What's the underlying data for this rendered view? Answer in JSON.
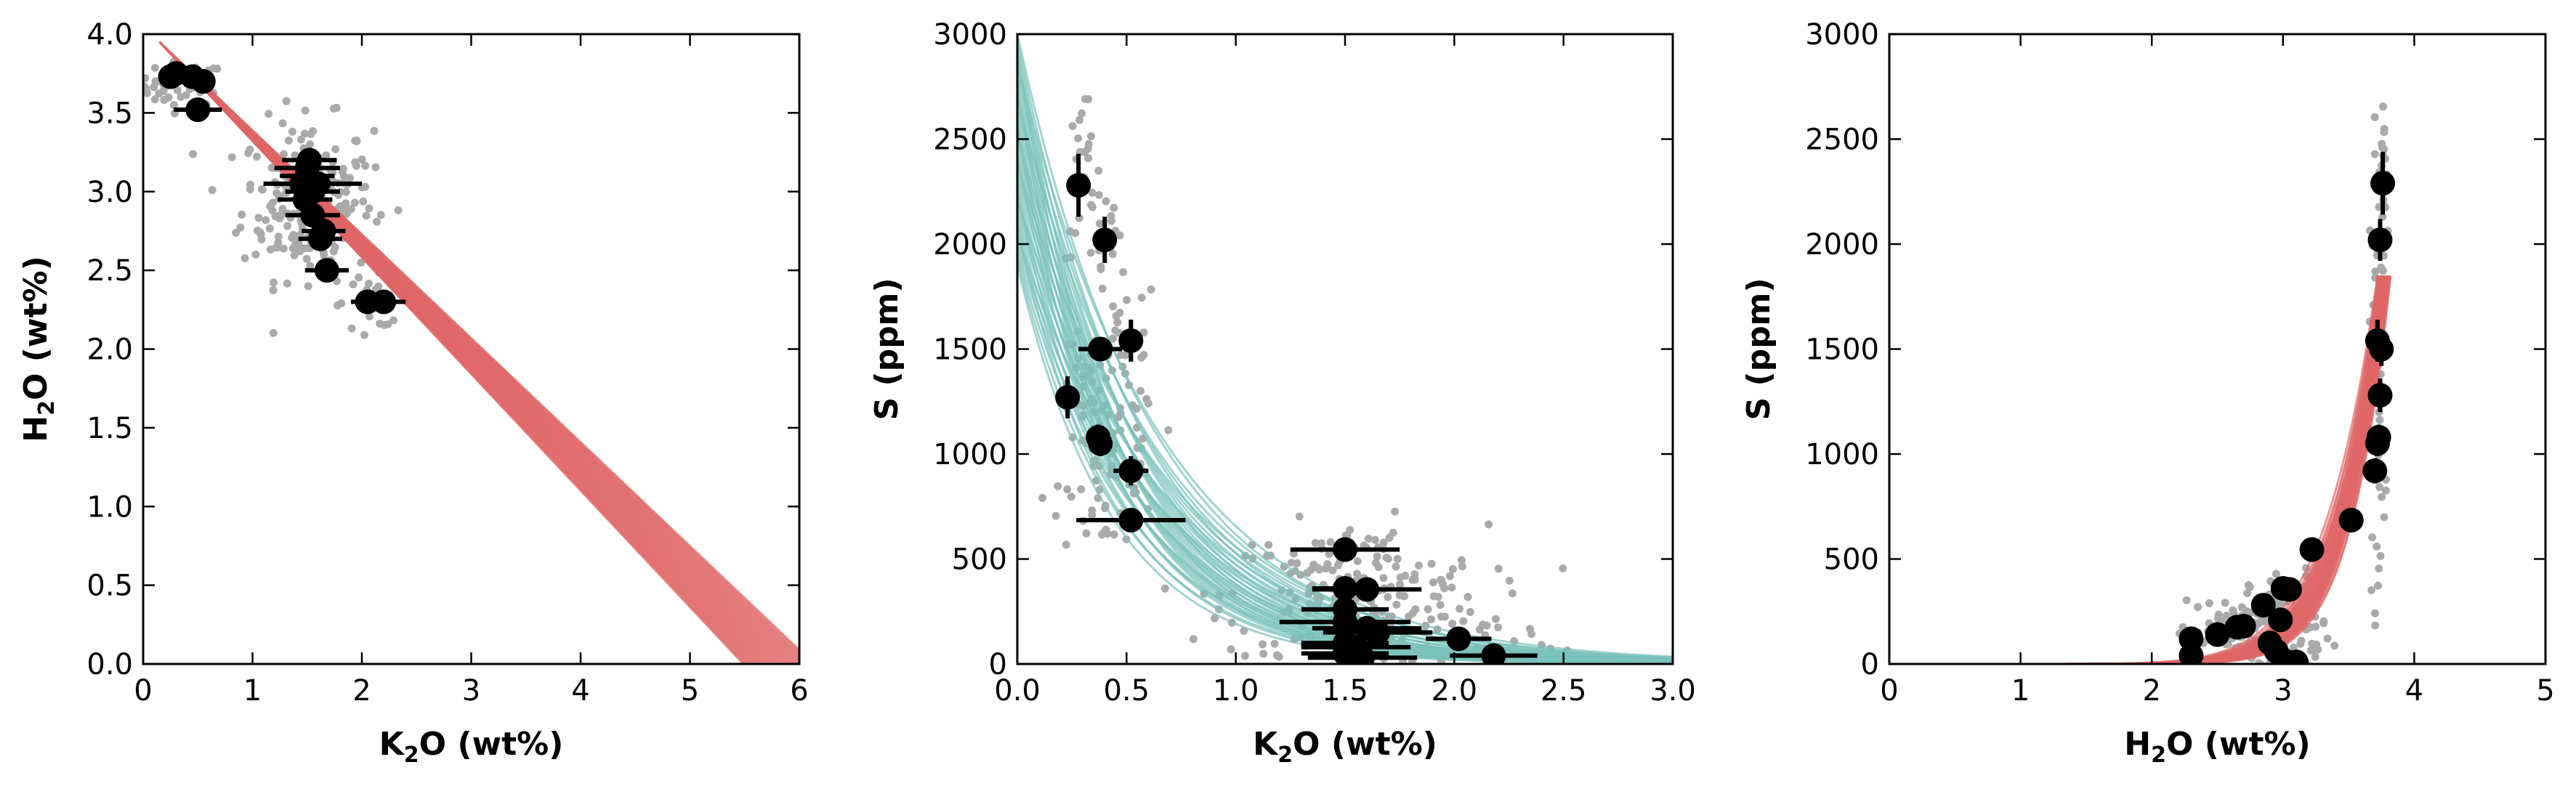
{
  "colors": {
    "red_model": "#e06666",
    "teal_model": "#79c2bb",
    "scatter": "#aaaaaa",
    "points": "#000000"
  },
  "chart_data": [
    {
      "type": "scatter",
      "xlabel": {
        "main": "K",
        "sub": "2",
        "rest": "O (wt%)"
      },
      "ylabel": {
        "main": "H",
        "sub": "2",
        "rest": "O (wt%)"
      },
      "xlim": [
        0,
        6
      ],
      "ylim": [
        0,
        4
      ],
      "xticks": [
        "0",
        "1",
        "2",
        "3",
        "4",
        "5",
        "6"
      ],
      "yticks": [
        "0.0",
        "0.5",
        "1.0",
        "1.5",
        "2.0",
        "2.5",
        "3.0",
        "3.5",
        "4.0"
      ],
      "model": {
        "kind": "lines",
        "color": "red",
        "line_count": 40,
        "x0": 0.15,
        "y0": 3.95,
        "slope_range": [
          -0.74,
          -0.66
        ]
      },
      "scatter_clouds": [
        {
          "cx": 0.35,
          "cy": 3.68,
          "sx": 0.2,
          "sy": 0.07,
          "n": 55
        },
        {
          "cx": 1.5,
          "cy": 2.95,
          "sx": 0.3,
          "sy": 0.25,
          "n": 230
        },
        {
          "cx": 2.1,
          "cy": 2.3,
          "sx": 0.2,
          "sy": 0.08,
          "n": 25
        }
      ],
      "points": [
        {
          "x": 0.25,
          "y": 3.73,
          "xerr": 0.05,
          "yerr": 0.02
        },
        {
          "x": 0.3,
          "y": 3.75,
          "xerr": 0.05,
          "yerr": 0.02
        },
        {
          "x": 0.45,
          "y": 3.73,
          "xerr": 0.05,
          "yerr": 0.02
        },
        {
          "x": 0.55,
          "y": 3.7,
          "xerr": 0.05,
          "yerr": 0.02
        },
        {
          "x": 0.5,
          "y": 3.52,
          "xerr": 0.22,
          "yerr": 0.03
        },
        {
          "x": 1.52,
          "y": 3.2,
          "xerr": 0.25,
          "yerr": 0.05
        },
        {
          "x": 1.5,
          "y": 3.15,
          "xerr": 0.3,
          "yerr": 0.05
        },
        {
          "x": 1.5,
          "y": 3.1,
          "xerr": 0.25,
          "yerr": 0.05
        },
        {
          "x": 1.45,
          "y": 3.05,
          "xerr": 0.35,
          "yerr": 0.05
        },
        {
          "x": 1.6,
          "y": 3.05,
          "xerr": 0.4,
          "yerr": 0.05
        },
        {
          "x": 1.55,
          "y": 3.0,
          "xerr": 0.25,
          "yerr": 0.05
        },
        {
          "x": 1.48,
          "y": 2.95,
          "xerr": 0.25,
          "yerr": 0.05
        },
        {
          "x": 1.55,
          "y": 2.85,
          "xerr": 0.25,
          "yerr": 0.05
        },
        {
          "x": 1.65,
          "y": 2.75,
          "xerr": 0.2,
          "yerr": 0.05
        },
        {
          "x": 1.62,
          "y": 2.7,
          "xerr": 0.2,
          "yerr": 0.05
        },
        {
          "x": 1.68,
          "y": 2.5,
          "xerr": 0.2,
          "yerr": 0.05
        },
        {
          "x": 2.05,
          "y": 2.3,
          "xerr": 0.15,
          "yerr": 0.03
        },
        {
          "x": 2.2,
          "y": 2.3,
          "xerr": 0.2,
          "yerr": 0.03
        }
      ]
    },
    {
      "type": "scatter",
      "xlabel": {
        "main": "K",
        "sub": "2",
        "rest": "O (wt%)"
      },
      "ylabel": {
        "main": "S (ppm)",
        "sub": "",
        "rest": ""
      },
      "xlim": [
        0,
        3
      ],
      "ylim": [
        0,
        3000
      ],
      "xticks": [
        "0.0",
        "0.5",
        "1.0",
        "1.5",
        "2.0",
        "2.5",
        "3.0"
      ],
      "yticks": [
        "0",
        "500",
        "1000",
        "1500",
        "2000",
        "2500",
        "3000"
      ],
      "model": {
        "kind": "exp_curves",
        "color": "teal",
        "line_count": 40,
        "a_range": [
          1900,
          3000
        ],
        "b_range": [
          -2.3,
          -1.45
        ]
      },
      "scatter_clouds": [
        {
          "cx": 0.3,
          "cy": 2300,
          "sx": 0.04,
          "sy": 200,
          "n": 25
        },
        {
          "cx": 0.4,
          "cy": 2050,
          "sx": 0.04,
          "sy": 150,
          "n": 20
        },
        {
          "cx": 0.5,
          "cy": 1550,
          "sx": 0.07,
          "sy": 150,
          "n": 30
        },
        {
          "cx": 0.3,
          "cy": 1300,
          "sx": 0.05,
          "sy": 150,
          "n": 25
        },
        {
          "cx": 0.45,
          "cy": 1000,
          "sx": 0.1,
          "sy": 170,
          "n": 55
        },
        {
          "cx": 0.4,
          "cy": 720,
          "sx": 0.1,
          "sy": 70,
          "n": 20
        },
        {
          "cx": 1.55,
          "cy": 320,
          "sx": 0.3,
          "sy": 170,
          "n": 230
        },
        {
          "cx": 2.15,
          "cy": 100,
          "sx": 0.2,
          "sy": 80,
          "n": 25
        }
      ],
      "points": [
        {
          "x": 0.28,
          "y": 2280,
          "xerr": 0.02,
          "yerr": 150
        },
        {
          "x": 0.4,
          "y": 2020,
          "xerr": 0.03,
          "yerr": 110
        },
        {
          "x": 0.38,
          "y": 1500,
          "xerr": 0.1,
          "yerr": 50
        },
        {
          "x": 0.52,
          "y": 1540,
          "xerr": 0.05,
          "yerr": 100
        },
        {
          "x": 0.23,
          "y": 1270,
          "xerr": 0.02,
          "yerr": 100
        },
        {
          "x": 0.37,
          "y": 1080,
          "xerr": 0.03,
          "yerr": 60
        },
        {
          "x": 0.38,
          "y": 1050,
          "xerr": 0.03,
          "yerr": 60
        },
        {
          "x": 0.52,
          "y": 920,
          "xerr": 0.08,
          "yerr": 70
        },
        {
          "x": 0.52,
          "y": 685,
          "xerr": 0.25,
          "yerr": 30
        },
        {
          "x": 1.5,
          "y": 545,
          "xerr": 0.25,
          "yerr": 30
        },
        {
          "x": 1.5,
          "y": 360,
          "xerr": 0.15,
          "yerr": 40
        },
        {
          "x": 1.6,
          "y": 355,
          "xerr": 0.25,
          "yerr": 40
        },
        {
          "x": 1.5,
          "y": 260,
          "xerr": 0.2,
          "yerr": 40
        },
        {
          "x": 1.5,
          "y": 200,
          "xerr": 0.3,
          "yerr": 40
        },
        {
          "x": 1.6,
          "y": 170,
          "xerr": 0.25,
          "yerr": 40
        },
        {
          "x": 1.65,
          "y": 150,
          "xerr": 0.25,
          "yerr": 40
        },
        {
          "x": 1.5,
          "y": 100,
          "xerr": 0.2,
          "yerr": 30
        },
        {
          "x": 1.55,
          "y": 80,
          "xerr": 0.25,
          "yerr": 30
        },
        {
          "x": 1.5,
          "y": 50,
          "xerr": 0.2,
          "yerr": 30
        },
        {
          "x": 1.58,
          "y": 30,
          "xerr": 0.25,
          "yerr": 20
        },
        {
          "x": 2.02,
          "y": 120,
          "xerr": 0.15,
          "yerr": 30
        },
        {
          "x": 2.18,
          "y": 40,
          "xerr": 0.2,
          "yerr": 20
        }
      ]
    },
    {
      "type": "scatter",
      "xlabel": {
        "main": "H",
        "sub": "2",
        "rest": "O (wt%)"
      },
      "ylabel": {
        "main": "S (ppm)",
        "sub": "",
        "rest": ""
      },
      "xlim": [
        0,
        5
      ],
      "ylim": [
        0,
        3000
      ],
      "xticks": [
        "0",
        "1",
        "2",
        "3",
        "4",
        "5"
      ],
      "yticks": [
        "0",
        "500",
        "1000",
        "1500",
        "2000",
        "2500",
        "3000"
      ],
      "model": {
        "kind": "power_curves",
        "color": "red",
        "line_count": 40,
        "x_end_range": [
          3.72,
          3.82
        ],
        "y_end": 1850,
        "power_range": [
          9,
          13
        ]
      },
      "scatter_clouds": [
        {
          "cx": 2.6,
          "cy": 150,
          "sx": 0.2,
          "sy": 80,
          "n": 70
        },
        {
          "cx": 3.05,
          "cy": 200,
          "sx": 0.15,
          "sy": 120,
          "n": 110
        },
        {
          "cx": 3.72,
          "cy": 1400,
          "sx": 0.03,
          "sy": 550,
          "n": 60
        },
        {
          "cx": 3.76,
          "cy": 2350,
          "sx": 0.02,
          "sy": 200,
          "n": 20
        }
      ],
      "points": [
        {
          "x": 3.76,
          "y": 2290,
          "xerr": 0.02,
          "yerr": 150
        },
        {
          "x": 3.74,
          "y": 2020,
          "xerr": 0.02,
          "yerr": 100
        },
        {
          "x": 3.72,
          "y": 1540,
          "xerr": 0.02,
          "yerr": 100
        },
        {
          "x": 3.75,
          "y": 1500,
          "xerr": 0.02,
          "yerr": 80
        },
        {
          "x": 3.74,
          "y": 1280,
          "xerr": 0.02,
          "yerr": 80
        },
        {
          "x": 3.73,
          "y": 1080,
          "xerr": 0.02,
          "yerr": 60
        },
        {
          "x": 3.72,
          "y": 1050,
          "xerr": 0.02,
          "yerr": 60
        },
        {
          "x": 3.7,
          "y": 920,
          "xerr": 0.02,
          "yerr": 60
        },
        {
          "x": 3.52,
          "y": 685,
          "xerr": 0.03,
          "yerr": 30
        },
        {
          "x": 3.22,
          "y": 545,
          "xerr": 0.03,
          "yerr": 30
        },
        {
          "x": 3.0,
          "y": 360,
          "xerr": 0.05,
          "yerr": 40
        },
        {
          "x": 3.05,
          "y": 355,
          "xerr": 0.05,
          "yerr": 40
        },
        {
          "x": 2.85,
          "y": 280,
          "xerr": 0.05,
          "yerr": 40
        },
        {
          "x": 2.98,
          "y": 210,
          "xerr": 0.05,
          "yerr": 40
        },
        {
          "x": 2.7,
          "y": 180,
          "xerr": 0.05,
          "yerr": 30
        },
        {
          "x": 2.65,
          "y": 175,
          "xerr": 0.05,
          "yerr": 30
        },
        {
          "x": 2.5,
          "y": 140,
          "xerr": 0.05,
          "yerr": 30
        },
        {
          "x": 2.3,
          "y": 120,
          "xerr": 0.03,
          "yerr": 30
        },
        {
          "x": 2.9,
          "y": 100,
          "xerr": 0.05,
          "yerr": 30
        },
        {
          "x": 2.95,
          "y": 60,
          "xerr": 0.05,
          "yerr": 30
        },
        {
          "x": 2.3,
          "y": 40,
          "xerr": 0.03,
          "yerr": 20
        },
        {
          "x": 3.0,
          "y": 20,
          "xerr": 0.05,
          "yerr": 20
        },
        {
          "x": 3.1,
          "y": 10,
          "xerr": 0.05,
          "yerr": 20
        }
      ]
    }
  ]
}
